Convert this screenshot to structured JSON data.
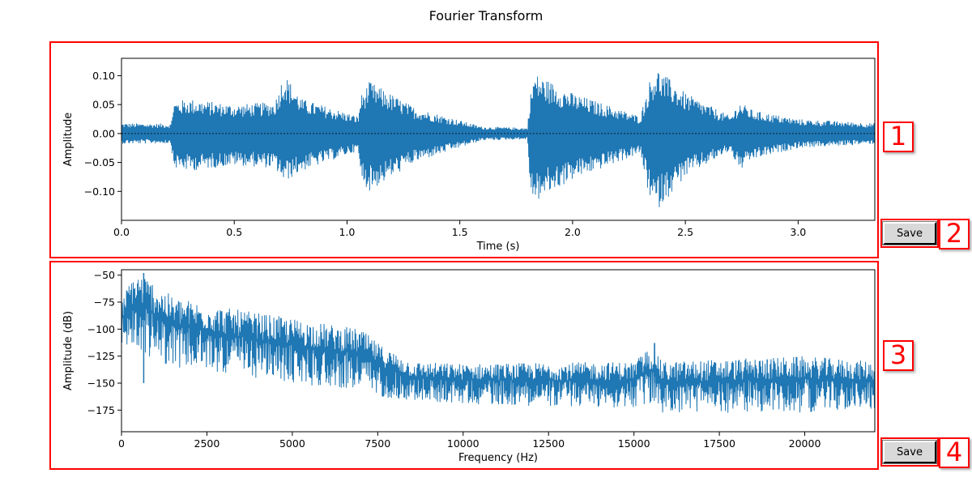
{
  "figure": {
    "title": "Fourier Transform"
  },
  "buttons": {
    "save_top_label": "Save",
    "save_bottom_label": "Save"
  },
  "annotations": [
    "1",
    "2",
    "3",
    "4"
  ],
  "chart_data": [
    {
      "type": "line",
      "title": "",
      "xlabel": "Time (s)",
      "ylabel": "Amplitude",
      "xlim": [
        0,
        3.34
      ],
      "ylim": [
        -0.15,
        0.13
      ],
      "xticks": [
        0.0,
        0.5,
        1.0,
        1.5,
        2.0,
        2.5,
        3.0
      ],
      "xtick_labels": [
        "0.0",
        "0.5",
        "1.0",
        "1.5",
        "2.0",
        "2.5",
        "3.0"
      ],
      "yticks": [
        0.1,
        0.05,
        0.0,
        -0.05,
        -0.1
      ],
      "ytick_labels": [
        "0.10",
        "0.05",
        "0.00",
        "−0.05",
        "−0.10"
      ],
      "color": "#1f77b4",
      "reference_line": {
        "y": 0,
        "style": "dashed",
        "color": "#000000"
      },
      "envelope": {
        "t": [
          0.0,
          0.22,
          0.23,
          0.3,
          0.5,
          0.68,
          0.72,
          0.8,
          1.05,
          1.06,
          1.1,
          1.3,
          1.6,
          1.8,
          1.81,
          1.83,
          2.0,
          2.3,
          2.34,
          2.37,
          2.5,
          2.7,
          2.74,
          2.8,
          3.0,
          3.34
        ],
        "upper": [
          0.018,
          0.017,
          0.055,
          0.06,
          0.05,
          0.055,
          0.105,
          0.06,
          0.03,
          0.065,
          0.09,
          0.045,
          0.012,
          0.01,
          0.06,
          0.105,
          0.07,
          0.03,
          0.09,
          0.115,
          0.07,
          0.03,
          0.055,
          0.04,
          0.025,
          0.018
        ],
        "lower": [
          -0.018,
          -0.017,
          -0.06,
          -0.065,
          -0.055,
          -0.06,
          -0.085,
          -0.065,
          -0.03,
          -0.08,
          -0.1,
          -0.05,
          -0.012,
          -0.01,
          -0.09,
          -0.12,
          -0.08,
          -0.035,
          -0.11,
          -0.135,
          -0.075,
          -0.03,
          -0.065,
          -0.045,
          -0.025,
          -0.018
        ]
      }
    },
    {
      "type": "line",
      "title": "",
      "xlabel": "Frequency (Hz)",
      "ylabel": "Amplitude (dB)",
      "xlim": [
        0,
        22050
      ],
      "ylim": [
        -195,
        -45
      ],
      "xticks": [
        0,
        2500,
        5000,
        7500,
        10000,
        12500,
        15000,
        17500,
        20000
      ],
      "xtick_labels": [
        "0",
        "2500",
        "5000",
        "7500",
        "10000",
        "12500",
        "15000",
        "17500",
        "20000"
      ],
      "yticks": [
        -50,
        -75,
        -100,
        -125,
        -150,
        -175
      ],
      "ytick_labels": [
        "−50",
        "−75",
        "−100",
        "−125",
        "−150",
        "−175"
      ],
      "color": "#1f77b4",
      "envelope": {
        "f": [
          0,
          300,
          600,
          1500,
          3000,
          5000,
          7000,
          7600,
          8500,
          10000,
          15000,
          15600,
          15800,
          20000,
          22050
        ],
        "upper": [
          -75,
          -50,
          -48,
          -70,
          -80,
          -90,
          -100,
          -115,
          -130,
          -132,
          -130,
          -112,
          -130,
          -125,
          -130
        ],
        "lower": [
          -120,
          -130,
          -135,
          -145,
          -150,
          -160,
          -165,
          -170,
          -172,
          -175,
          -180,
          -180,
          -185,
          -185,
          -180
        ]
      },
      "spikes": [
        {
          "x": 650,
          "y": -48
        },
        {
          "x": 15600,
          "y": -113
        },
        {
          "x": 18900,
          "y": -128
        },
        {
          "x": 20600,
          "y": -127
        }
      ]
    }
  ]
}
